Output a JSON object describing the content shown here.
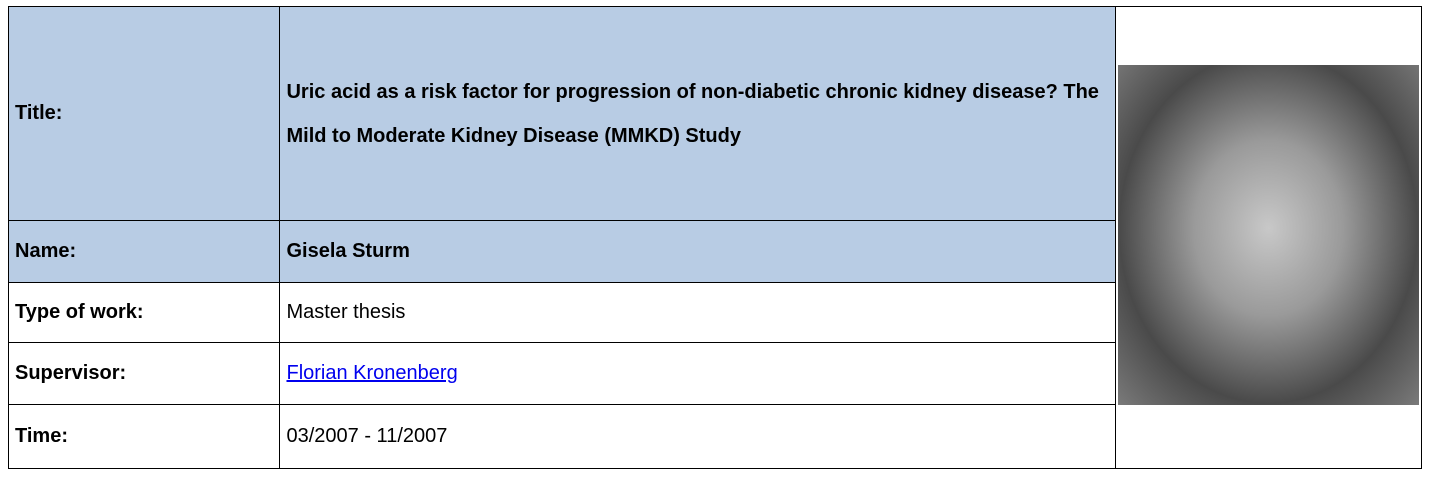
{
  "table": {
    "rows": [
      {
        "label": "Title:",
        "value": "Uric acid as a risk factor for progression of non-diabetic chronic kidney disease? The Mild to Moderate Kidney Disease (MMKD) Study"
      },
      {
        "label": "Name:",
        "value": "Gisela Sturm"
      },
      {
        "label": "Type of work:",
        "value": "Master thesis"
      },
      {
        "label": "Supervisor:",
        "value": "Florian Kronenberg"
      },
      {
        "label": "Time:",
        "value": "03/2007 - 11/2007"
      }
    ]
  }
}
